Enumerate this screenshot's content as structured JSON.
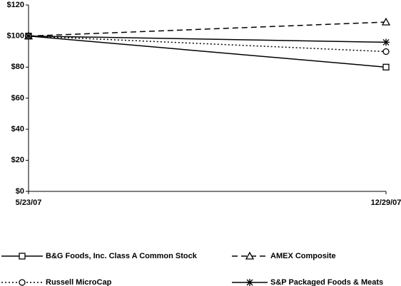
{
  "chart_data": {
    "type": "line",
    "categories": [
      "5/23/07",
      "12/29/07"
    ],
    "series": [
      {
        "name": "B&G Foods, Inc. Class A Common Stock",
        "color": "#000000",
        "dash": "solid",
        "marker": "square",
        "values": [
          100,
          80
        ]
      },
      {
        "name": "AMEX Composite",
        "color": "#000000",
        "dash": "dashed",
        "marker": "triangle",
        "values": [
          100,
          109
        ]
      },
      {
        "name": "Russell MicroCap",
        "color": "#000000",
        "dash": "dotted",
        "marker": "circle",
        "values": [
          100,
          90
        ]
      },
      {
        "name": "S&P Packaged Foods & Meats",
        "color": "#000000",
        "dash": "solid",
        "marker": "star",
        "values": [
          100,
          96
        ]
      }
    ],
    "ylim": [
      0,
      120
    ],
    "yticks": [
      {
        "value": 0,
        "label": "$0"
      },
      {
        "value": 20,
        "label": "$20"
      },
      {
        "value": 40,
        "label": "$40"
      },
      {
        "value": 60,
        "label": "$60"
      },
      {
        "value": 80,
        "label": "$80"
      },
      {
        "value": 100,
        "label": "$100"
      },
      {
        "value": 120,
        "label": "$120"
      }
    ],
    "grid": false
  }
}
